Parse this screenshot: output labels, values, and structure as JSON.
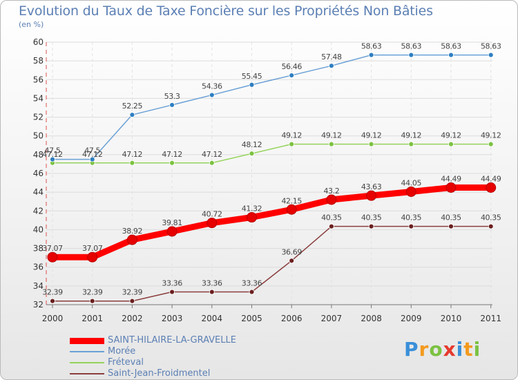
{
  "title": "Evolution du Taux de Taxe Foncière sur les Propriétés Non Bâties",
  "subtitle": "(en %)",
  "logo": {
    "text": "Proxiti",
    "letters": [
      {
        "ch": "P",
        "color": "#3a8fd9"
      },
      {
        "ch": "r",
        "color": "#f39a1e"
      },
      {
        "ch": "o",
        "color": "#7cc242"
      },
      {
        "ch": "x",
        "color": "#e63a2e"
      },
      {
        "ch": "i",
        "color": "#3a8fd9"
      },
      {
        "ch": "t",
        "color": "#f39a1e"
      },
      {
        "ch": "i",
        "color": "#7cc242"
      }
    ]
  },
  "chart_data": {
    "type": "line",
    "title": "Evolution du Taux de Taxe Foncière sur les Propriétés Non Bâties",
    "ylabel": "(en %)",
    "x": [
      "2000",
      "2001",
      "2002",
      "2003",
      "2004",
      "2005",
      "2006",
      "2007",
      "2008",
      "2009",
      "2010",
      "2011"
    ],
    "ylim": [
      32,
      60
    ],
    "yticks": [
      32,
      34,
      36,
      38,
      40,
      42,
      44,
      46,
      48,
      50,
      52,
      54,
      56,
      58,
      60
    ],
    "grid": true,
    "legend_position": "bottom-left",
    "series": [
      {
        "name": "SAINT-HILAIRE-LA-GRAVELLE",
        "color": "#ff0000",
        "marker_color": "#e60000",
        "width": "thick",
        "values": [
          37.07,
          37.07,
          38.92,
          39.81,
          40.72,
          41.32,
          42.15,
          43.2,
          43.63,
          44.05,
          44.49,
          44.49
        ],
        "labels": [
          "37.07",
          "37.07",
          "38.92",
          "39.81",
          "40.72",
          "41.32",
          "42.15",
          "43.2",
          "43.63",
          "44.05",
          "44.49",
          "44.49"
        ]
      },
      {
        "name": "Morée",
        "color": "#6aa0d6",
        "marker_color": "#2f7fc1",
        "width": "thin",
        "values": [
          47.5,
          47.5,
          52.25,
          53.3,
          54.36,
          55.45,
          56.46,
          57.48,
          58.63,
          58.63,
          58.63,
          58.63
        ],
        "labels": [
          "47.5",
          "47.5",
          "52.25",
          "53.3",
          "54.36",
          "55.45",
          "56.46",
          "57.48",
          "58.63",
          "58.63",
          "58.63",
          "58.63"
        ]
      },
      {
        "name": "Fréteval",
        "color": "#94d45a",
        "marker_color": "#7cc242",
        "width": "thin",
        "values": [
          47.12,
          47.12,
          47.12,
          47.12,
          47.12,
          48.12,
          49.12,
          49.12,
          49.12,
          49.12,
          49.12,
          49.12
        ],
        "labels": [
          "47.12",
          "47.12",
          "47.12",
          "47.12",
          "47.12",
          "48.12",
          "49.12",
          "49.12",
          "49.12",
          "49.12",
          "49.12",
          "49.12"
        ]
      },
      {
        "name": "Saint-Jean-Froidmentel",
        "color": "#8a3d3d",
        "marker_color": "#6b1f1f",
        "width": "thin",
        "values": [
          32.39,
          32.39,
          32.39,
          33.36,
          33.36,
          33.36,
          36.69,
          40.35,
          40.35,
          40.35,
          40.35,
          40.35
        ],
        "labels": [
          "32.39",
          "32.39",
          "32.39",
          "33.36",
          "33.36",
          "33.36",
          "36.69",
          "40.35",
          "40.35",
          "40.35",
          "40.35",
          "40.35"
        ]
      }
    ]
  }
}
